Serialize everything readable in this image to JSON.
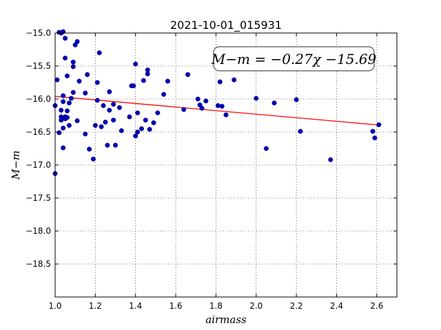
{
  "chart_data": {
    "type": "scatter",
    "title": "2021-10-01_015931",
    "xlabel": "airmass",
    "ylabel": "M−m",
    "xlim": [
      1.0,
      2.7
    ],
    "ylim": [
      -15.0,
      -19.0
    ],
    "y_inverted": true,
    "xticks": [
      1.0,
      1.2,
      1.4,
      1.6,
      1.8,
      2.0,
      2.2,
      2.4,
      2.6
    ],
    "xtick_labels": [
      "1.0",
      "1.2",
      "1.4",
      "1.6",
      "1.8",
      "2.0",
      "2.2",
      "2.4",
      "2.6"
    ],
    "yticks": [
      -15.0,
      -15.5,
      -16.0,
      -16.5,
      -17.0,
      -17.5,
      -18.0,
      -18.5
    ],
    "ytick_labels": [
      "−15.0",
      "−15.5",
      "−16.0",
      "−16.5",
      "−17.0",
      "−17.5",
      "−18.0",
      "−18.5"
    ],
    "grid": true,
    "annotation": "M−m = −0.27χ −15.69",
    "fit": {
      "slope": -0.27,
      "intercept": -15.69,
      "x_range": [
        1.0,
        2.61
      ],
      "color": "#ff0000"
    },
    "marker_color": "#0000bb",
    "series": [
      {
        "x": [
          1.0,
          1.01,
          1.02,
          1.02,
          1.03,
          1.03,
          1.03,
          1.03,
          1.04,
          1.04,
          1.04,
          1.04,
          1.04,
          1.05,
          1.05,
          1.05,
          1.05,
          1.06,
          1.06,
          1.06,
          1.07,
          1.07,
          1.08,
          1.09,
          1.09,
          1.09,
          1.1,
          1.11,
          1.11,
          1.12,
          1.15,
          1.15,
          1.16,
          1.17,
          1.19,
          1.2,
          1.21,
          1.21,
          1.22,
          1.23,
          1.24,
          1.25,
          1.26,
          1.27,
          1.27,
          1.29,
          1.29,
          1.3,
          1.32,
          1.33,
          1.37,
          1.38,
          1.39,
          1.4,
          1.4,
          1.41,
          1.41,
          1.43,
          1.44,
          1.45,
          1.46,
          1.46,
          1.47,
          1.49,
          1.51,
          1.54,
          1.56,
          1.64,
          1.66,
          1.71,
          1.72,
          1.73,
          1.75,
          1.81,
          1.82,
          1.83,
          1.85,
          1.89,
          2.0,
          2.05,
          2.09,
          2.2,
          2.22,
          2.37,
          2.58,
          2.59,
          2.61,
          1.0
        ],
        "y": [
          -16.1,
          -15.71,
          -14.99,
          -16.51,
          -16.32,
          -16.17,
          -16.27,
          -15.0,
          -16.04,
          -15.95,
          -16.44,
          -16.74,
          -14.98,
          -15.38,
          -15.08,
          -16.27,
          -16.3,
          -16.28,
          -15.65,
          -16.18,
          -16.4,
          -16.06,
          -15.99,
          -15.44,
          -15.51,
          -15.9,
          -15.18,
          -15.13,
          -16.33,
          -15.73,
          -16.53,
          -15.91,
          -15.63,
          -16.76,
          -16.91,
          -16.4,
          -15.75,
          -16.02,
          -15.3,
          -16.42,
          -16.1,
          -16.35,
          -16.7,
          -15.89,
          -16.17,
          -16.32,
          -16.08,
          -16.7,
          -16.13,
          -16.48,
          -16.27,
          -15.8,
          -15.8,
          -15.47,
          -16.56,
          -16.5,
          -16.21,
          -16.45,
          -15.72,
          -16.32,
          -15.56,
          -15.62,
          -16.46,
          -16.36,
          -16.21,
          -15.93,
          -15.73,
          -16.16,
          -15.63,
          -16.0,
          -16.09,
          -16.14,
          -16.03,
          -16.1,
          -15.74,
          -16.11,
          -16.24,
          -15.71,
          -15.99,
          -16.75,
          -16.06,
          -16.01,
          -16.49,
          -16.92,
          -16.49,
          -16.59,
          -16.39,
          -17.13
        ]
      }
    ]
  }
}
